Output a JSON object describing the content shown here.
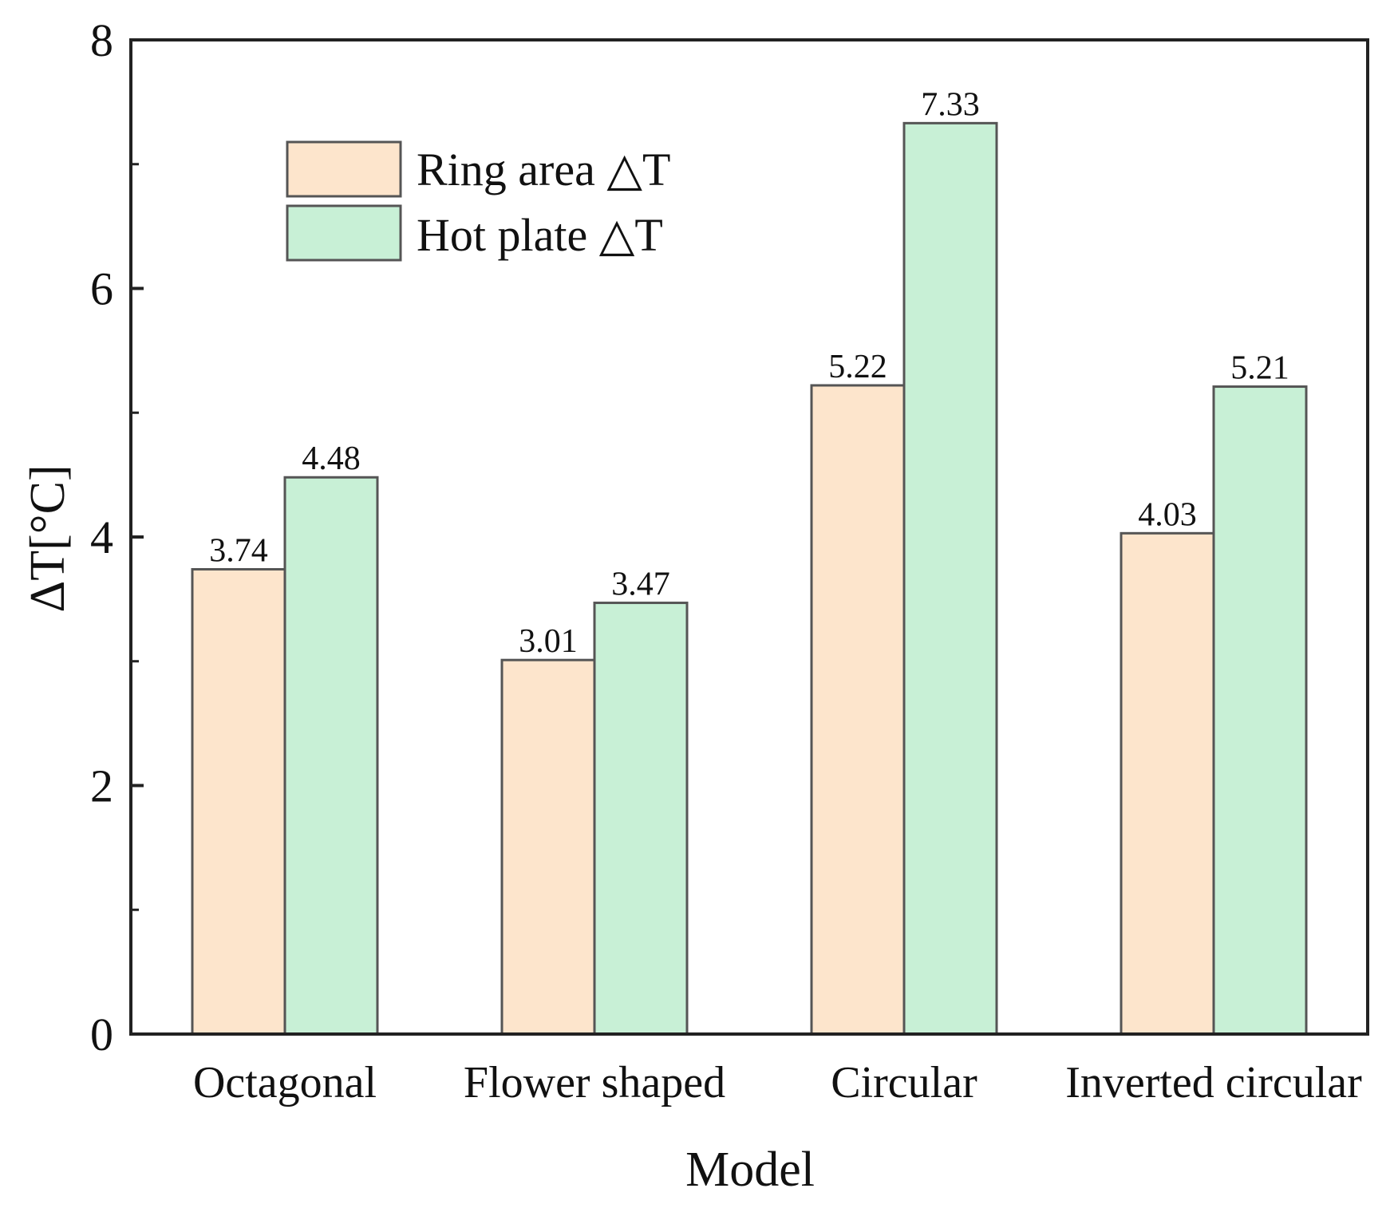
{
  "chart_data": {
    "type": "bar",
    "categories": [
      "Octagonal",
      "Flower shaped",
      "Circular",
      "Inverted circular"
    ],
    "series": [
      {
        "name": "Ring area △T",
        "values": [
          3.74,
          3.01,
          5.22,
          4.03
        ],
        "labels": [
          "3.74",
          "3.01",
          "5.22",
          "4.03"
        ],
        "color": "#fde5cc"
      },
      {
        "name": "Hot plate △T",
        "values": [
          4.48,
          3.47,
          7.33,
          5.21
        ],
        "labels": [
          "4.48",
          "3.47",
          "7.33",
          "5.21"
        ],
        "color": "#c8f0d6"
      }
    ],
    "xlabel": "Model",
    "ylabel": "ΔT[°C]",
    "ylim": [
      0,
      8
    ],
    "yticks": [
      0,
      2,
      4,
      6,
      8
    ],
    "ytick_labels": [
      "0",
      "2",
      "4",
      "6",
      "8"
    ],
    "grid": false,
    "legend_position": "top-left",
    "bar_edge_color": "#555555"
  }
}
